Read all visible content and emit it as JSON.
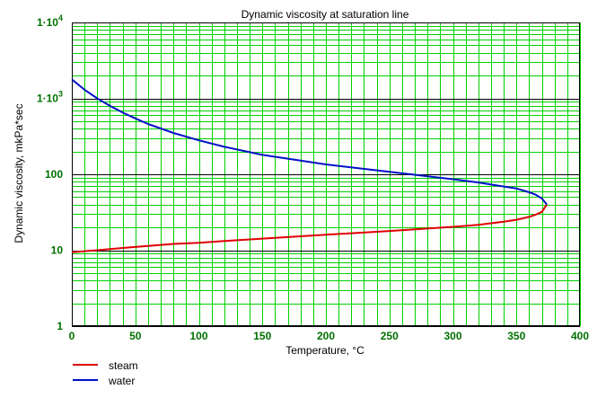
{
  "colors": {
    "background": "#ffffff",
    "minor_grid": "#00d000",
    "major_grid": "#000000",
    "tick_labels": "#007000",
    "steam": "#e00000",
    "water": "#0010c8"
  },
  "chart_data": {
    "type": "line",
    "title": "Dynamic viscosity at saturation line",
    "xlabel": "Temperature, °C",
    "ylabel": "Dynamic viscosity, mkPa*sec",
    "x_scale": "linear",
    "y_scale": "log",
    "xlim": [
      0,
      400
    ],
    "ylim": [
      1,
      10000
    ],
    "grid": true,
    "legend_position": "bottom-left",
    "x_ticks": [
      "0",
      "50",
      "100",
      "150",
      "200",
      "250",
      "300",
      "350",
      "400"
    ],
    "y_ticks": [
      {
        "value": 1,
        "base": "1",
        "exp": ""
      },
      {
        "value": 10,
        "base": "10",
        "exp": ""
      },
      {
        "value": 100,
        "base": "100",
        "exp": ""
      },
      {
        "value": 1000,
        "base": "1·10",
        "exp": "3"
      },
      {
        "value": 10000,
        "base": "1·10",
        "exp": "4"
      }
    ],
    "series": [
      {
        "name": "steam",
        "color": "#e00000",
        "x": [
          0,
          10,
          20,
          40,
          60,
          80,
          100,
          120,
          150,
          200,
          250,
          300,
          320,
          340,
          350,
          360,
          365,
          370,
          373.9
        ],
        "y": [
          9.4,
          9.7,
          10.0,
          10.7,
          11.4,
          12.1,
          12.5,
          13.2,
          14.2,
          16.0,
          17.9,
          20.3,
          21.6,
          23.7,
          25.2,
          27.5,
          29.3,
          32.0,
          40.0
        ]
      },
      {
        "name": "water",
        "color": "#0010c8",
        "x": [
          0,
          10,
          20,
          30,
          40,
          50,
          60,
          80,
          100,
          120,
          150,
          200,
          250,
          300,
          320,
          340,
          350,
          360,
          365,
          370,
          373.9
        ],
        "y": [
          1780,
          1300,
          1000,
          800,
          650,
          545,
          460,
          350,
          280,
          230,
          180,
          135,
          108,
          86,
          78,
          69,
          65,
          58,
          54,
          48,
          40
        ]
      }
    ]
  }
}
